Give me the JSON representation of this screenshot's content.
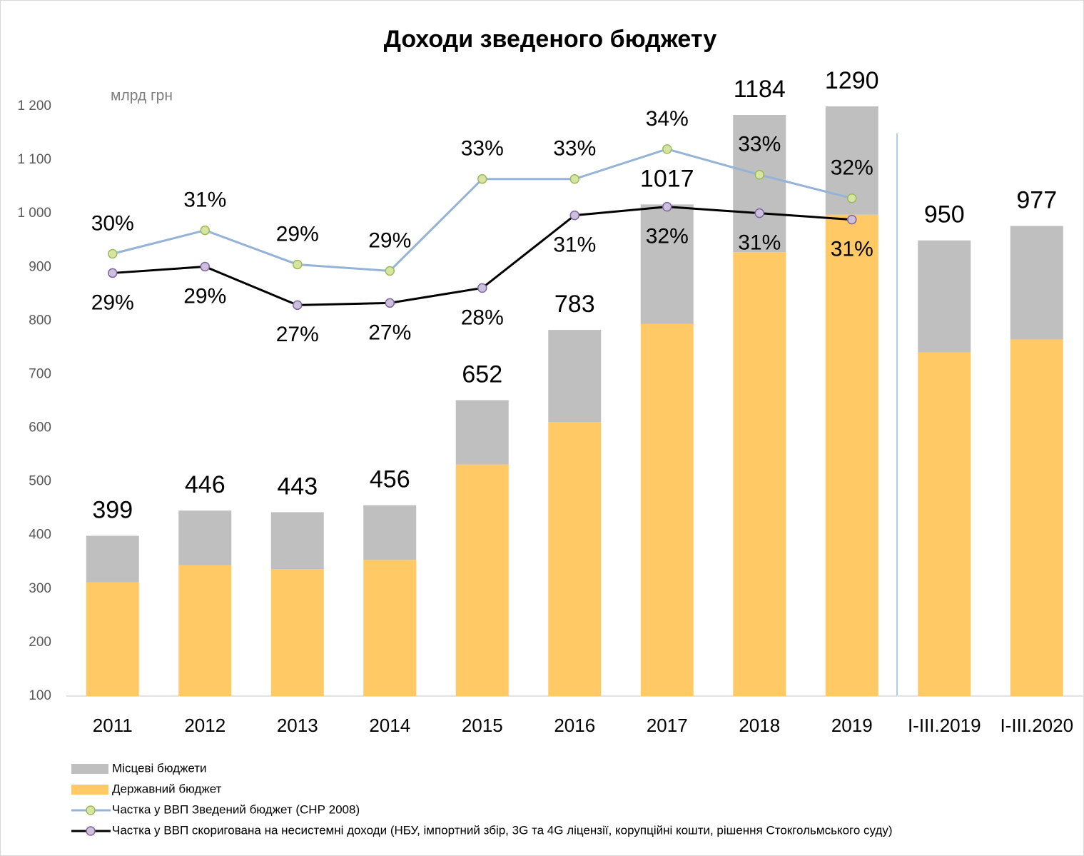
{
  "chart_data": {
    "type": "bar",
    "title": "Доходи зведеного бюджету",
    "unit_label": "млрд грн",
    "categories": [
      "2011",
      "2012",
      "2013",
      "2014",
      "2015",
      "2016",
      "2017",
      "2018",
      "2019",
      "I-III.2019",
      "I-III.2020"
    ],
    "series": [
      {
        "name": "Місцеві бюджети",
        "type": "bar",
        "color": "#bfbfbf",
        "stack_order": 1,
        "values": [
          87,
          102,
          106,
          102,
          120,
          172,
          223,
          256,
          292,
          209,
          212
        ]
      },
      {
        "name": "Державний бюджет",
        "type": "bar",
        "color": "#ffc966",
        "stack_order": 0,
        "values": [
          312,
          344,
          337,
          354,
          532,
          611,
          794,
          928,
          998,
          741,
          765
        ]
      },
      {
        "name": "Частка у ВВП Зведений бюджет (СНР 2008)",
        "type": "line",
        "axis": "y2",
        "color": "#95b3d7",
        "marker_fill": "#d7e4a3",
        "marker_stroke": "#9bbb59",
        "label_side": "above",
        "values": [
          29.5,
          30.6,
          29.0,
          28.7,
          33.0,
          33.0,
          34.4,
          33.2,
          32.1,
          null,
          null
        ],
        "value_labels": [
          "30%",
          "31%",
          "29%",
          "29%",
          "33%",
          "33%",
          "34%",
          "33%",
          "32%",
          null,
          null
        ]
      },
      {
        "name": "Частка у ВВП скоригована на несистемні доходи (НБУ, імпортний збір, 3G та 4G ліцензії, корупційні кошти, рішення Стокгольмського суду)",
        "type": "line",
        "axis": "y2",
        "color": "#000000",
        "marker_fill": "#ccc0da",
        "marker_stroke": "#8064a2",
        "label_side": "below",
        "values": [
          28.6,
          28.9,
          27.1,
          27.2,
          27.9,
          31.3,
          31.7,
          31.4,
          31.1,
          null,
          null
        ],
        "value_labels": [
          "29%",
          "29%",
          "27%",
          "27%",
          "28%",
          "31%",
          "32%",
          "31%",
          "31%",
          null,
          null
        ]
      }
    ],
    "totals": [
      399,
      446,
      443,
      456,
      652,
      783,
      1017,
      1184,
      1290,
      950,
      977
    ],
    "ylim": [
      100,
      1200
    ],
    "yticks": [
      100,
      200,
      300,
      400,
      500,
      600,
      700,
      800,
      900,
      {
        "value": 1000,
        "label": "1 000"
      },
      {
        "value": 1100,
        "label": "1 100"
      },
      {
        "value": 1200,
        "label": "1 200"
      }
    ],
    "y2lim": [
      8.8,
      36.4
    ],
    "grid": false,
    "legend": "bottom-left"
  }
}
